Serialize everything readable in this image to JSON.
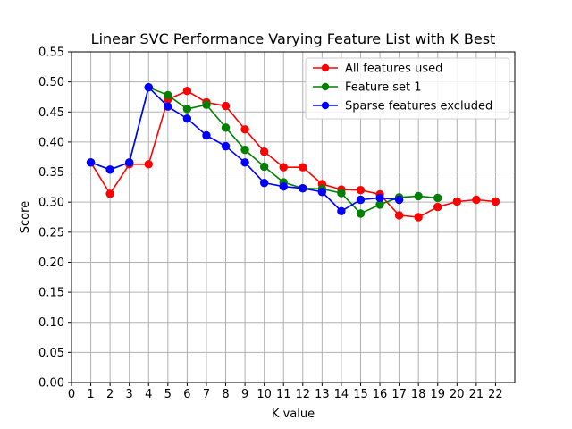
{
  "chart_data": {
    "type": "line",
    "title": "Linear SVC Performance Varying Feature List with K Best",
    "xlabel": "K value",
    "ylabel": "Score",
    "xlim": [
      0,
      23
    ],
    "ylim": [
      0,
      0.55
    ],
    "xticks": [
      0,
      1,
      2,
      3,
      4,
      5,
      6,
      7,
      8,
      9,
      10,
      11,
      12,
      13,
      14,
      15,
      16,
      17,
      18,
      19,
      20,
      21,
      22
    ],
    "yticks": [
      0.0,
      0.05,
      0.1,
      0.15,
      0.2,
      0.25,
      0.3,
      0.35,
      0.4,
      0.45,
      0.5,
      0.55
    ],
    "ytick_labels": [
      "0.00",
      "0.05",
      "0.10",
      "0.15",
      "0.20",
      "0.25",
      "0.30",
      "0.35",
      "0.40",
      "0.45",
      "0.50",
      "0.55"
    ],
    "grid": true,
    "legend_position": "top-right",
    "series": [
      {
        "name": "All features used",
        "color": "#ff0000",
        "x": [
          1,
          2,
          3,
          4,
          5,
          6,
          7,
          8,
          9,
          10,
          11,
          12,
          13,
          14,
          15,
          16,
          17,
          18,
          19,
          20,
          21,
          22
        ],
        "values": [
          0.366,
          0.314,
          0.363,
          0.363,
          0.471,
          0.485,
          0.466,
          0.46,
          0.421,
          0.384,
          0.358,
          0.358,
          0.33,
          0.321,
          0.32,
          0.313,
          0.278,
          0.275,
          0.292,
          0.301,
          0.304,
          0.301
        ]
      },
      {
        "name": "Feature set 1",
        "color": "#008000",
        "x": [
          1,
          2,
          3,
          4,
          5,
          6,
          7,
          8,
          9,
          10,
          11,
          12,
          13,
          14,
          15,
          16,
          17,
          18,
          19
        ],
        "values": [
          0.366,
          0.354,
          0.366,
          0.491,
          0.478,
          0.455,
          0.462,
          0.424,
          0.387,
          0.359,
          0.333,
          0.323,
          0.322,
          0.315,
          0.281,
          0.296,
          0.308,
          0.31,
          0.307
        ]
      },
      {
        "name": "Sparse features excluded",
        "color": "#0000ff",
        "x": [
          1,
          2,
          3,
          4,
          5,
          6,
          7,
          8,
          9,
          10,
          11,
          12,
          13,
          14,
          15,
          16,
          17
        ],
        "values": [
          0.366,
          0.354,
          0.366,
          0.491,
          0.459,
          0.439,
          0.411,
          0.393,
          0.366,
          0.332,
          0.326,
          0.323,
          0.317,
          0.285,
          0.304,
          0.307,
          0.304
        ]
      }
    ]
  }
}
